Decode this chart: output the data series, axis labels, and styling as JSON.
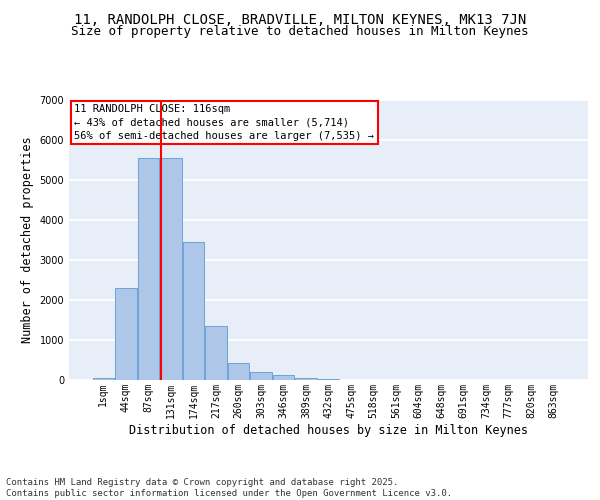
{
  "title_line1": "11, RANDOLPH CLOSE, BRADVILLE, MILTON KEYNES, MK13 7JN",
  "title_line2": "Size of property relative to detached houses in Milton Keynes",
  "xlabel": "Distribution of detached houses by size in Milton Keynes",
  "ylabel": "Number of detached properties",
  "categories": [
    "1sqm",
    "44sqm",
    "87sqm",
    "131sqm",
    "174sqm",
    "217sqm",
    "260sqm",
    "303sqm",
    "346sqm",
    "389sqm",
    "432sqm",
    "475sqm",
    "518sqm",
    "561sqm",
    "604sqm",
    "648sqm",
    "691sqm",
    "734sqm",
    "777sqm",
    "820sqm",
    "863sqm"
  ],
  "values": [
    60,
    2300,
    5550,
    5550,
    3450,
    1350,
    430,
    190,
    130,
    60,
    30,
    0,
    0,
    0,
    0,
    0,
    0,
    0,
    0,
    0,
    0
  ],
  "bar_color": "#aec6e8",
  "bar_edge_color": "#5b9bd5",
  "background_color": "#e8eef8",
  "grid_color": "#ffffff",
  "vline_color": "red",
  "vline_x_index": 2.55,
  "annotation_text": "11 RANDOLPH CLOSE: 116sqm\n← 43% of detached houses are smaller (5,714)\n56% of semi-detached houses are larger (7,535) →",
  "annotation_box_color": "#ffffff",
  "annotation_box_edge": "red",
  "ylim": [
    0,
    7000
  ],
  "yticks": [
    0,
    1000,
    2000,
    3000,
    4000,
    5000,
    6000,
    7000
  ],
  "footnote": "Contains HM Land Registry data © Crown copyright and database right 2025.\nContains public sector information licensed under the Open Government Licence v3.0.",
  "title_fontsize": 10,
  "subtitle_fontsize": 9,
  "tick_fontsize": 7,
  "label_fontsize": 8.5,
  "annotation_fontsize": 7.5,
  "footnote_fontsize": 6.5
}
